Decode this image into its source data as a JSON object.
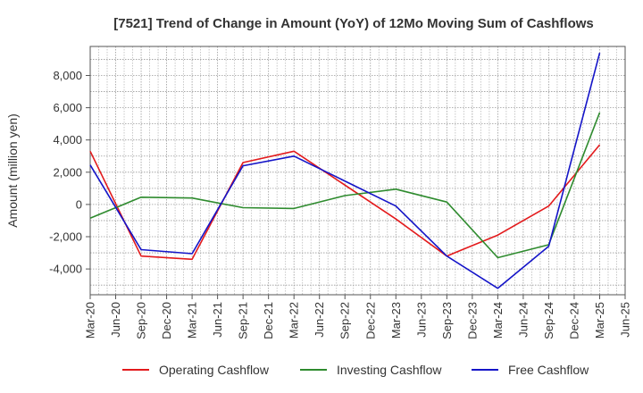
{
  "chart_data": {
    "type": "line",
    "title": "[7521]  Trend of Change in Amount (YoY) of 12Mo Moving Sum of Cashflows",
    "xlabel": "",
    "ylabel": "Amount (million yen)",
    "ylim": [
      -5600,
      9800
    ],
    "yticks": [
      -4000,
      -2000,
      0,
      2000,
      4000,
      6000,
      8000
    ],
    "ytick_labels": [
      "-4,000",
      "-2,000",
      "0",
      "2,000",
      "4,000",
      "6,000",
      "8,000"
    ],
    "categories": [
      "Mar-20",
      "Jun-20",
      "Sep-20",
      "Dec-20",
      "Mar-21",
      "Jun-21",
      "Sep-21",
      "Dec-21",
      "Mar-22",
      "Jun-22",
      "Sep-22",
      "Dec-22",
      "Mar-23",
      "Jun-23",
      "Sep-23",
      "Dec-23",
      "Mar-24",
      "Jun-24",
      "Sep-24",
      "Dec-24",
      "Mar-25",
      "Jun-25"
    ],
    "grid": true,
    "legend_position": "bottom",
    "series": [
      {
        "name": "Operating Cashflow",
        "color": "#e31a1c",
        "points": [
          [
            0,
            3300
          ],
          [
            2,
            -3200
          ],
          [
            4,
            -3400
          ],
          [
            6,
            2600
          ],
          [
            8,
            3300
          ],
          [
            12,
            -900
          ],
          [
            14,
            -3200
          ],
          [
            16,
            -1900
          ],
          [
            18,
            -100
          ],
          [
            20,
            3700
          ]
        ]
      },
      {
        "name": "Investing Cashflow",
        "color": "#2e8b2e",
        "points": [
          [
            0,
            -850
          ],
          [
            2,
            450
          ],
          [
            4,
            400
          ],
          [
            6,
            -200
          ],
          [
            8,
            -250
          ],
          [
            10,
            550
          ],
          [
            12,
            950
          ],
          [
            14,
            150
          ],
          [
            16,
            -3300
          ],
          [
            18,
            -2500
          ],
          [
            20,
            5700
          ]
        ]
      },
      {
        "name": "Free Cashflow",
        "color": "#1414c8",
        "points": [
          [
            0,
            2450
          ],
          [
            2,
            -2800
          ],
          [
            4,
            -3050
          ],
          [
            6,
            2400
          ],
          [
            8,
            3000
          ],
          [
            12,
            -100
          ],
          [
            14,
            -3200
          ],
          [
            16,
            -5200
          ],
          [
            18,
            -2600
          ],
          [
            20,
            9400
          ]
        ]
      }
    ]
  }
}
